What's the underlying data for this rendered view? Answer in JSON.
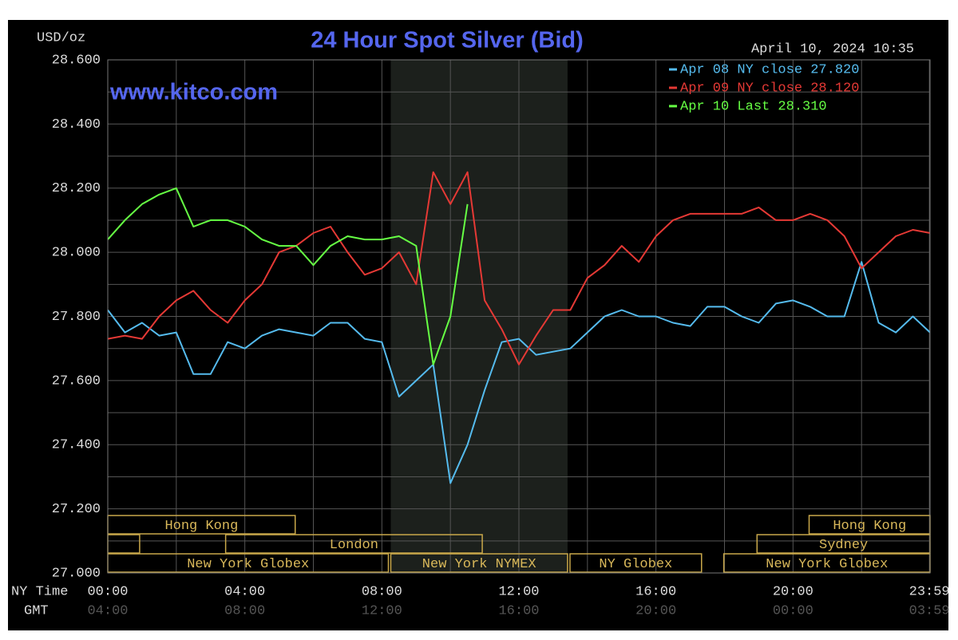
{
  "chart_data": {
    "type": "line",
    "title": "24 Hour Spot Silver (Bid)",
    "y_unit": "USD/oz",
    "timestamp": "April 10, 2024 10:35",
    "watermark": "www.kitco.com",
    "x_row_label": "NY Time",
    "gmt_row_label": "GMT",
    "x": [
      0,
      0.5,
      1,
      1.5,
      2,
      2.5,
      3,
      3.5,
      4,
      4.5,
      5,
      5.5,
      6,
      6.5,
      7,
      7.5,
      8,
      8.5,
      9,
      9.5,
      10,
      10.5,
      11,
      11.5,
      12,
      12.5,
      13,
      13.5,
      14,
      14.5,
      15,
      15.5,
      16,
      16.5,
      17,
      17.5,
      18,
      18.5,
      19,
      19.5,
      20,
      20.5,
      21,
      21.5,
      22,
      22.5,
      23,
      23.5,
      24
    ],
    "series": [
      {
        "name": "Apr 08 NY close 27.820",
        "color": "#55bbee",
        "values": [
          27.82,
          27.75,
          27.78,
          27.74,
          27.75,
          27.62,
          27.62,
          27.72,
          27.7,
          27.74,
          27.76,
          27.75,
          27.74,
          27.78,
          27.78,
          27.73,
          27.72,
          27.55,
          27.6,
          27.65,
          27.28,
          27.4,
          27.57,
          27.72,
          27.73,
          27.68,
          27.69,
          27.7,
          27.75,
          27.8,
          27.82,
          27.8,
          27.8,
          27.78,
          27.77,
          27.83,
          27.83,
          27.8,
          27.78,
          27.84,
          27.85,
          27.83,
          27.8,
          27.8,
          27.97,
          27.78,
          27.75,
          27.8,
          27.75
        ]
      },
      {
        "name": "Apr 09 NY close 28.120",
        "color": "#e53935",
        "values": [
          27.73,
          27.74,
          27.73,
          27.8,
          27.85,
          27.88,
          27.82,
          27.78,
          27.85,
          27.9,
          28.0,
          28.02,
          28.06,
          28.08,
          28.0,
          27.93,
          27.95,
          28.0,
          27.9,
          28.25,
          28.15,
          28.25,
          27.85,
          27.76,
          27.65,
          27.74,
          27.82,
          27.82,
          27.92,
          27.96,
          28.02,
          27.97,
          28.05,
          28.1,
          28.12,
          28.12,
          28.12,
          28.12,
          28.14,
          28.1,
          28.1,
          28.12,
          28.1,
          28.05,
          27.95,
          28.0,
          28.05,
          28.07,
          28.06
        ]
      },
      {
        "name": "Apr 10 Last 28.310",
        "color": "#66ff44",
        "values": [
          28.04,
          28.1,
          28.15,
          28.18,
          28.2,
          28.08,
          28.1,
          28.1,
          28.08,
          28.04,
          28.02,
          28.02,
          27.96,
          28.02,
          28.05,
          28.04,
          28.04,
          28.05,
          28.02,
          27.65,
          27.8,
          28.15,
          null,
          null,
          null,
          null,
          null,
          null,
          null,
          null,
          null,
          null,
          null,
          null,
          null,
          null,
          null,
          null,
          null,
          null,
          null,
          null,
          null,
          null,
          null,
          null,
          null,
          null,
          null
        ]
      }
    ],
    "xlim": [
      0,
      24
    ],
    "ylim": [
      27.0,
      28.6
    ],
    "yticks": [
      {
        "value": 27.0,
        "label": "27.000"
      },
      {
        "value": 27.2,
        "label": "27.200"
      },
      {
        "value": 27.4,
        "label": "27.400"
      },
      {
        "value": 27.6,
        "label": "27.600"
      },
      {
        "value": 27.8,
        "label": "27.800"
      },
      {
        "value": 28.0,
        "label": "28.000"
      },
      {
        "value": 28.2,
        "label": "28.200"
      },
      {
        "value": 28.4,
        "label": "28.400"
      },
      {
        "value": 28.6,
        "label": "28.600"
      }
    ],
    "ygrid": [
      27.1,
      27.3,
      27.5,
      27.7,
      27.9,
      28.1,
      28.3,
      28.5
    ],
    "xticks": [
      {
        "value": 0,
        "label": "00:00"
      },
      {
        "value": 4,
        "label": "04:00"
      },
      {
        "value": 8,
        "label": "08:00"
      },
      {
        "value": 12,
        "label": "12:00"
      },
      {
        "value": 16,
        "label": "16:00"
      },
      {
        "value": 20,
        "label": "20:00"
      },
      {
        "value": 23.98,
        "label": "23:59"
      }
    ],
    "gmt_labels": [
      "04:00",
      "08:00",
      "12:00",
      "16:00",
      "20:00",
      "00:00",
      "03:59"
    ],
    "xgrid": [
      2,
      6,
      10,
      14,
      18,
      22
    ],
    "shade": [
      8.26,
      13.42
    ],
    "sessions": [
      {
        "label": "Hong Kong",
        "start": 0,
        "end": 5.47,
        "row": 0
      },
      {
        "label": "Hong Kong",
        "start": 20.47,
        "end": 24,
        "row": 0
      },
      {
        "start": 0,
        "end": 0.93,
        "row": 1
      },
      {
        "label": "London",
        "start": 3.44,
        "end": 10.93,
        "row": 1
      },
      {
        "label": "Sydney",
        "start": 18.95,
        "end": 24,
        "row": 1
      },
      {
        "label": "New York Globex",
        "start": 0,
        "end": 8.19,
        "row": 2
      },
      {
        "label": "New York NYMEX",
        "start": 8.26,
        "end": 13.42,
        "row": 2
      },
      {
        "label": "NY Globex",
        "start": 13.49,
        "end": 17.33,
        "row": 2
      },
      {
        "label": "New York Globex",
        "start": 17.98,
        "end": 24,
        "row": 2
      }
    ]
  }
}
